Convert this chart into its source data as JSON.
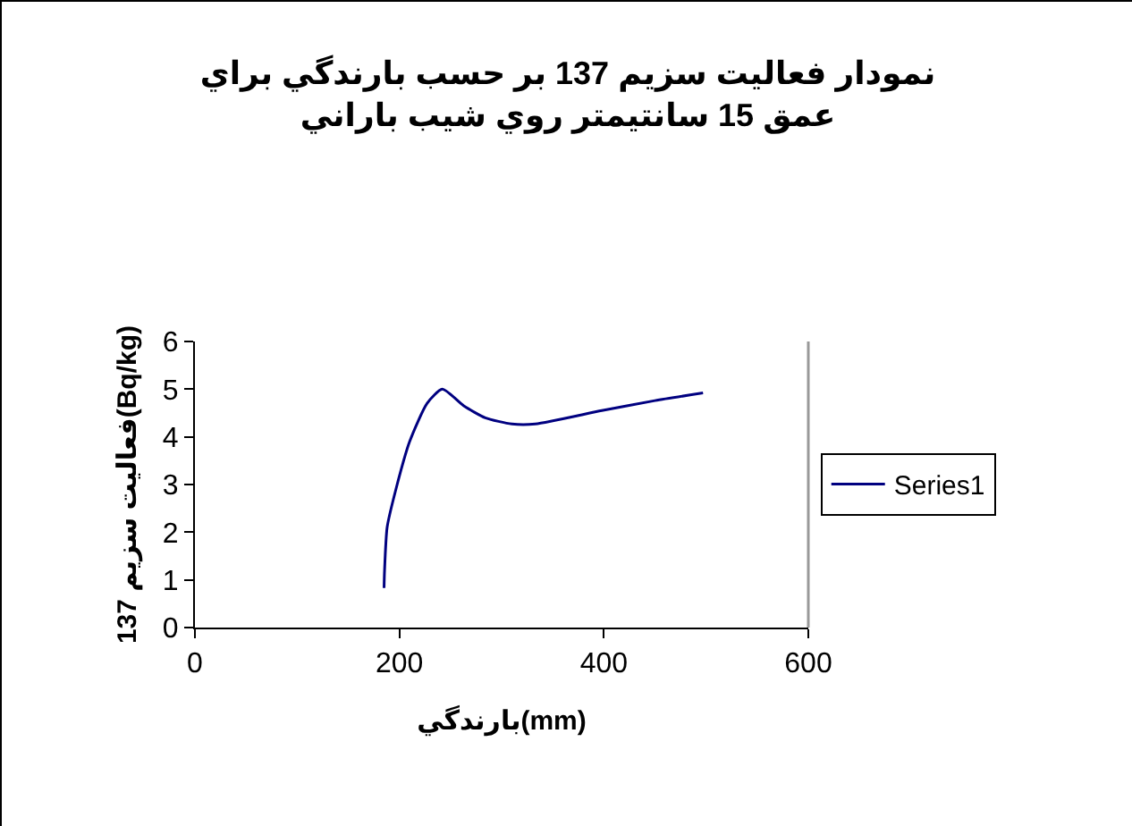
{
  "chart_data": {
    "type": "line",
    "title": "نمودار فعاليت سزيم 137 بر حسب بارندگي براي عمق 15 سانتيمتر روي شيب باراني",
    "xlabel": "بارندگي(mm)",
    "ylabel": "فعاليت سزيم 137(Bq/kg)",
    "xlim": [
      0,
      600
    ],
    "xticks": [
      0,
      200,
      400,
      600
    ],
    "ylim": [
      0,
      6
    ],
    "yticks": [
      0,
      1,
      2,
      3,
      4,
      5,
      6
    ],
    "grid": false,
    "legend": "right",
    "marker": "none",
    "line_style": "solid",
    "series": [
      {
        "name": "Series1",
        "color": "#000080",
        "x": [
          185,
          185.5,
          188,
          196,
          210,
          227,
          242,
          263,
          284,
          310,
          333,
          398,
          450,
          497
        ],
        "values": [
          0.83,
          1.2,
          2.1,
          2.85,
          3.9,
          4.7,
          5.0,
          4.65,
          4.4,
          4.27,
          4.27,
          4.55,
          4.76,
          4.92
        ]
      }
    ]
  }
}
